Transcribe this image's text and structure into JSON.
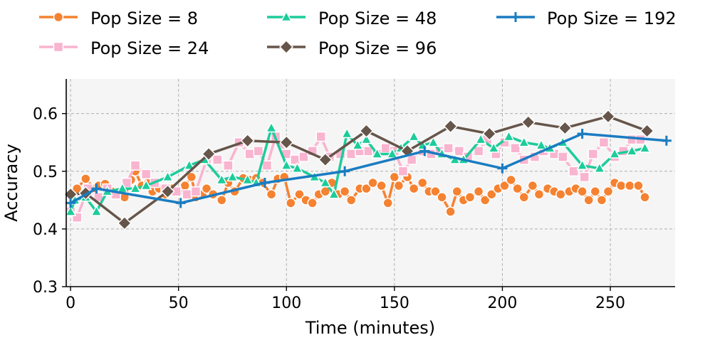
{
  "chart_data": {
    "type": "line",
    "title": "",
    "xlabel": "Time (minutes)",
    "ylabel": "Accuracy",
    "xlim": [
      -2,
      280
    ],
    "ylim": [
      0.3,
      0.66
    ],
    "xticks": [
      0,
      50,
      100,
      150,
      200,
      250
    ],
    "xtick_labels": [
      "0",
      "50",
      "100",
      "150",
      "200",
      "250"
    ],
    "yticks": [
      0.3,
      0.4,
      0.5,
      0.6
    ],
    "ytick_labels": [
      "0.3",
      "0.4",
      "0.5",
      "0.6"
    ],
    "grid": true,
    "legend_position": "top",
    "series": [
      {
        "name": "Pop Size = 8",
        "color": "#f58231",
        "marker": "circle",
        "x": [
          0,
          3,
          7,
          11,
          13,
          16,
          19,
          22,
          25,
          28,
          30,
          33,
          36,
          38,
          41,
          44,
          47,
          50,
          53,
          56,
          58,
          61,
          63,
          66,
          70,
          73,
          76,
          80,
          83,
          86,
          89,
          93,
          96,
          99,
          102,
          106,
          109,
          112,
          115,
          118,
          121,
          124,
          127,
          130,
          134,
          137,
          140,
          144,
          147,
          150,
          152,
          156,
          159,
          163,
          166,
          169,
          172,
          176,
          179,
          182,
          185,
          189,
          192,
          195,
          198,
          201,
          204,
          207,
          210,
          214,
          217,
          221,
          224,
          227,
          231,
          234,
          237,
          240,
          243,
          246,
          249,
          252,
          255,
          259,
          263,
          266
        ],
        "y": [
          0.46,
          0.47,
          0.487,
          0.47,
          0.475,
          0.478,
          0.465,
          0.46,
          0.455,
          0.485,
          0.5,
          0.475,
          0.48,
          0.465,
          0.47,
          0.46,
          0.47,
          0.465,
          0.475,
          0.49,
          0.455,
          0.46,
          0.47,
          0.46,
          0.45,
          0.48,
          0.465,
          0.488,
          0.485,
          0.488,
          0.48,
          0.46,
          0.487,
          0.49,
          0.445,
          0.46,
          0.45,
          0.445,
          0.46,
          0.465,
          0.48,
          0.46,
          0.465,
          0.45,
          0.47,
          0.47,
          0.48,
          0.475,
          0.445,
          0.49,
          0.475,
          0.49,
          0.47,
          0.48,
          0.465,
          0.465,
          0.455,
          0.43,
          0.465,
          0.45,
          0.455,
          0.465,
          0.45,
          0.46,
          0.47,
          0.475,
          0.485,
          0.47,
          0.455,
          0.475,
          0.46,
          0.47,
          0.465,
          0.46,
          0.465,
          0.47,
          0.465,
          0.45,
          0.465,
          0.45,
          0.465,
          0.48,
          0.475,
          0.475,
          0.475,
          0.455
        ]
      },
      {
        "name": "Pop Size = 24",
        "color": "#f9b4cf",
        "marker": "square",
        "x": [
          0,
          3,
          8,
          13,
          17,
          21,
          26,
          30,
          35,
          39,
          44,
          49,
          54,
          58,
          63,
          68,
          73,
          78,
          83,
          87,
          91,
          95,
          100,
          104,
          108,
          112,
          116,
          120,
          125,
          130,
          134,
          138,
          142,
          146,
          150,
          154,
          158,
          163,
          167,
          171,
          175,
          180,
          184,
          189,
          193,
          197,
          201,
          206,
          210,
          215,
          219,
          224,
          228,
          233,
          238,
          242,
          247,
          252,
          256,
          260,
          264
        ],
        "y": [
          0.43,
          0.42,
          0.47,
          0.455,
          0.47,
          0.46,
          0.48,
          0.51,
          0.495,
          0.48,
          0.47,
          0.465,
          0.46,
          0.465,
          0.52,
          0.52,
          0.51,
          0.55,
          0.53,
          0.535,
          0.51,
          0.56,
          0.53,
          0.52,
          0.525,
          0.535,
          0.56,
          0.525,
          0.53,
          0.53,
          0.535,
          0.535,
          0.53,
          0.54,
          0.535,
          0.5,
          0.52,
          0.535,
          0.53,
          0.535,
          0.54,
          0.535,
          0.525,
          0.535,
          0.555,
          0.53,
          0.55,
          0.54,
          0.52,
          0.525,
          0.535,
          0.53,
          0.525,
          0.5,
          0.49,
          0.53,
          0.55,
          0.525,
          0.535,
          0.555,
          0.555
        ]
      },
      {
        "name": "Pop Size = 48",
        "color": "#1dcc9b",
        "marker": "triangle",
        "x": [
          0,
          2,
          7,
          12,
          17,
          24,
          30,
          35,
          45,
          55,
          62,
          70,
          75,
          82,
          86,
          93,
          100,
          105,
          113,
          118,
          122,
          128,
          133,
          137,
          142,
          149,
          153,
          159,
          163,
          168,
          172,
          178,
          182,
          190,
          196,
          203,
          210,
          218,
          222,
          228,
          237,
          245,
          252,
          260,
          266
        ],
        "y": [
          0.43,
          0.45,
          0.455,
          0.43,
          0.465,
          0.47,
          0.47,
          0.475,
          0.49,
          0.51,
          0.52,
          0.485,
          0.49,
          0.485,
          0.48,
          0.575,
          0.51,
          0.505,
          0.49,
          0.48,
          0.46,
          0.565,
          0.545,
          0.555,
          0.53,
          0.53,
          0.54,
          0.56,
          0.545,
          0.55,
          0.53,
          0.52,
          0.52,
          0.555,
          0.54,
          0.56,
          0.55,
          0.545,
          0.54,
          0.55,
          0.51,
          0.505,
          0.53,
          0.535,
          0.54
        ]
      },
      {
        "name": "Pop Size = 96",
        "color": "#66554a",
        "marker": "diamond",
        "x": [
          0,
          7,
          25,
          45,
          64,
          82,
          100,
          118,
          137,
          156,
          176,
          194,
          212,
          229,
          249,
          267
        ],
        "y": [
          0.46,
          0.462,
          0.41,
          0.465,
          0.53,
          0.553,
          0.55,
          0.52,
          0.57,
          0.535,
          0.578,
          0.565,
          0.585,
          0.575,
          0.595,
          0.57
        ]
      },
      {
        "name": "Pop Size = 192",
        "color": "#1a7cc1",
        "marker": "plus",
        "x": [
          0,
          12,
          51,
          90,
          127,
          164,
          200,
          237,
          276
        ],
        "y": [
          0.445,
          0.47,
          0.445,
          0.48,
          0.5,
          0.535,
          0.505,
          0.565,
          0.553
        ]
      }
    ]
  }
}
